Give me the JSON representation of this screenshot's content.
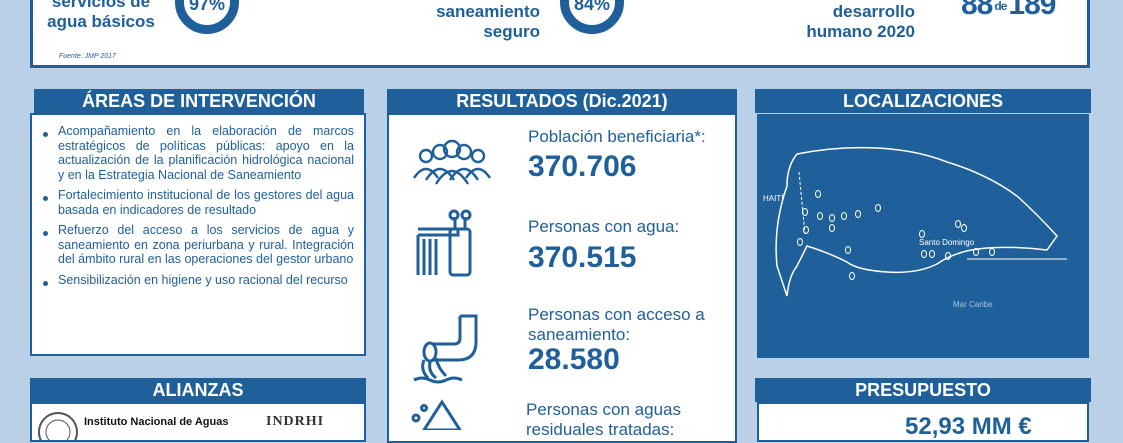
{
  "top_band": {
    "stat1_label_line1": "servicios de",
    "stat1_label_line2": "agua básicos",
    "stat1_value": "97%",
    "stat2_label_line1": "saneamiento",
    "stat2_label_line2": "seguro",
    "stat2_value": "84%",
    "stat3_label_line1": "desarrollo",
    "stat3_label_line2": "humano 2020",
    "rank_value": "88",
    "rank_connector": "de",
    "rank_total": "189",
    "source": "Fuente: JMP 2017"
  },
  "areas": {
    "title": "ÁREAS DE INTERVENCIÓN",
    "items": [
      "Acompañamiento en la elaboración de marcos estratégicos de políticas públicas: apoyo en la actualización de la planificación hidrológica nacional y en la Estrategia Nacional de Saneamiento",
      "Fortalecimiento institucional de los gestores del agua basada en indicadores de resultado",
      "Refuerzo del acceso a los servicios de agua y saneamiento en zona periurbana y rural. Integración del ámbito rural en las operaciones del gestor urbano",
      "Sensibilización en higiene y uso racional del recurso"
    ]
  },
  "results": {
    "title": "RESULTADOS (Dic.2021)",
    "items": [
      {
        "label": "Población beneficiaria",
        "marker": "*:",
        "value": "370.706",
        "icon": "people-group-icon"
      },
      {
        "label": "Personas con agua:",
        "value": "370.515",
        "icon": "water-tap-icon"
      },
      {
        "label": "Personas con acceso a saneamiento:",
        "value": "28.580",
        "icon": "sewage-pipe-icon"
      },
      {
        "label": "Personas con aguas residuales tratadas:",
        "icon": "water-drop-icon"
      }
    ]
  },
  "locations": {
    "title": "LOCALIZACIONES",
    "country_label": "HAITÍ",
    "city_label": "Santo Domingo",
    "sea_label": "Mar Caribe"
  },
  "alliances": {
    "title": "ALIANZAS",
    "inst1": "Instituto Nacional de Aguas",
    "inst2": "INDRHI"
  },
  "budget": {
    "title": "PRESUPUESTO",
    "value": "52,93 MM €"
  },
  "colors": {
    "primary": "#1f5f9a",
    "background": "#b9d0e6"
  }
}
